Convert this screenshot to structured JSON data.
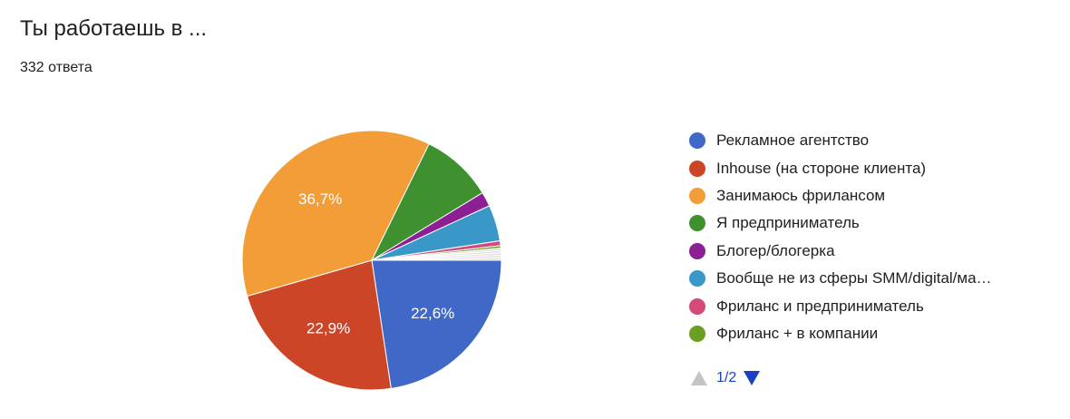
{
  "header": {
    "title": "Ты работаешь в ...",
    "responses": "332 ответа"
  },
  "pager": {
    "label": "1/2"
  },
  "chart_data": {
    "type": "pie",
    "categories": [
      "Рекламное агентство",
      "Inhouse (на стороне клиента)",
      "Занимаюсь фрилансом",
      "Я предприниматель",
      "Блогер/блогерка",
      "Вообще не из сферы SMM/digital/ма…",
      "Фриланс и предприниматель",
      "Фриланс + в компании",
      "",
      "",
      "",
      "",
      ""
    ],
    "values": [
      22.6,
      22.9,
      36.7,
      9.0,
      1.8,
      4.5,
      0.6,
      0.3,
      0.3,
      0.3,
      0.3,
      0.3,
      0.3
    ],
    "labels": [
      "22,6%",
      "22,9%",
      "36,7%",
      "",
      "",
      "",
      "",
      "",
      "",
      "",
      "",
      "",
      ""
    ],
    "colors": [
      "#3f68c7",
      "#cc4526",
      "#f29d38",
      "#3f9130",
      "#8c1f94",
      "#3a98c8",
      "#d44a7a",
      "#6aa022",
      "#e0e0e0",
      "#e0e0e0",
      "#e0e0e0",
      "#e0e0e0",
      "#e0e0e0"
    ],
    "legend_position": "right",
    "start": "3 o'clock",
    "direction": "clockwise"
  }
}
